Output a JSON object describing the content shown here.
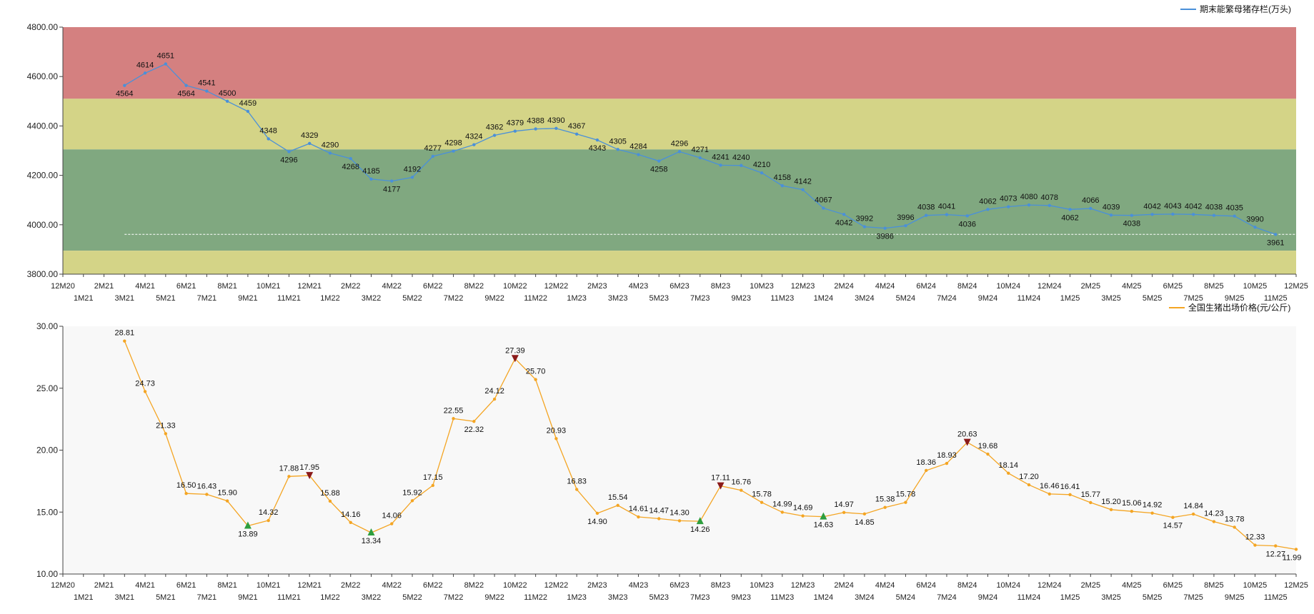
{
  "colors": {
    "top_line": "#4a90d9",
    "bottom_line": "#f4a523",
    "band_red": "#d48080",
    "band_yellow": "#d4d487",
    "band_green": "#80a880",
    "plot_bg_bottom": "#f8f8f8",
    "marker_up": "#2e9e3e",
    "marker_down": "#8b1a1a",
    "ref_line": "#ffffff"
  },
  "chart_data": [
    {
      "type": "line",
      "id": "top",
      "legend": "期末能繁母猪存栏(万头)",
      "legend_position": "top-right",
      "ylim": [
        3800,
        4800
      ],
      "yticks": [
        3800,
        4000,
        4200,
        4400,
        4600,
        4800
      ],
      "ytick_labels": [
        "3800.00",
        "4000.00",
        "4200.00",
        "4400.00",
        "4600.00",
        "4800.00"
      ],
      "bands": [
        {
          "from": 4510,
          "to": 4800,
          "color": "band_red"
        },
        {
          "from": 4305,
          "to": 4510,
          "color": "band_yellow"
        },
        {
          "from": 3895,
          "to": 4305,
          "color": "band_green"
        },
        {
          "from": 3800,
          "to": 3895,
          "color": "band_yellow"
        }
      ],
      "reference_line": {
        "value": 3961,
        "start_index": 3
      },
      "x_start_index": 3,
      "values": [
        4564,
        4614,
        4651,
        4564,
        4541,
        4500,
        4459,
        4348,
        4296,
        4329,
        4290,
        4268,
        4185,
        4177,
        4192,
        4277,
        4298,
        4324,
        4362,
        4379,
        4388,
        4390,
        4367,
        4343,
        4305,
        4284,
        4258,
        4296,
        4271,
        4241,
        4240,
        4210,
        4158,
        4142,
        4067,
        4042,
        3992,
        3986,
        3996,
        4038,
        4041,
        4036,
        4062,
        4073,
        4080,
        4078,
        4062,
        4066,
        4039,
        4038,
        4042,
        4043,
        4042,
        4038,
        4035,
        3990,
        3961
      ],
      "labels": [
        "4564",
        "4614",
        "4651",
        "4564",
        "4541",
        "4500",
        "4459",
        "4348",
        "4296",
        "4329",
        "4290",
        "4268",
        "4185",
        "4177",
        "4192",
        "4277",
        "4298",
        "4324",
        "4362",
        "4379",
        "4388",
        "4390",
        "4367",
        "4343",
        "4305",
        "4284",
        "4258",
        "4296",
        "4271",
        "4241",
        "4240",
        "4210",
        "4158",
        "4142",
        "4067",
        "4042",
        "3992",
        "3986",
        "3996",
        "4038",
        "4041",
        "4036",
        "4062",
        "4073",
        "4080",
        "4078",
        "4062",
        "4066",
        "4039",
        "4038",
        "4042",
        "4043",
        "4042",
        "4038",
        "4035",
        "3990",
        "3961"
      ],
      "label_pos": [
        "b",
        "t",
        "t",
        "b",
        "t",
        "t",
        "t",
        "t",
        "b",
        "t",
        "t",
        "b",
        "t",
        "b",
        "t",
        "t",
        "t",
        "t",
        "t",
        "t",
        "t",
        "t",
        "t",
        "b",
        "t",
        "t",
        "b",
        "t",
        "t",
        "t",
        "t",
        "t",
        "t",
        "t",
        "t",
        "b",
        "t",
        "b",
        "t",
        "t",
        "t",
        "b",
        "t",
        "t",
        "t",
        "t",
        "b",
        "t",
        "t",
        "b",
        "t",
        "t",
        "t",
        "t",
        "t",
        "t",
        "b"
      ]
    },
    {
      "type": "line",
      "id": "bottom",
      "legend": "全国生猪出场价格(元/公斤)",
      "legend_position": "top-right",
      "ylim": [
        10,
        30
      ],
      "yticks": [
        10,
        15,
        20,
        25,
        30
      ],
      "ytick_labels": [
        "10.00",
        "15.00",
        "20.00",
        "25.00",
        "30.00"
      ],
      "x_start_index": 3,
      "values": [
        28.81,
        24.73,
        21.33,
        16.5,
        16.43,
        15.9,
        13.89,
        14.32,
        17.88,
        17.95,
        15.88,
        14.16,
        13.34,
        14.06,
        15.92,
        17.15,
        22.55,
        22.32,
        24.12,
        27.39,
        25.7,
        20.93,
        16.83,
        14.9,
        15.54,
        14.61,
        14.47,
        14.3,
        14.26,
        17.11,
        16.76,
        15.78,
        14.99,
        14.69,
        14.63,
        14.97,
        14.85,
        15.38,
        15.78,
        18.36,
        18.93,
        20.63,
        19.68,
        18.14,
        17.2,
        16.46,
        16.41,
        15.77,
        15.2,
        15.06,
        14.92,
        14.57,
        14.84,
        14.23,
        13.78,
        12.33,
        12.27,
        11.99
      ],
      "labels": [
        "28.81",
        "24.73",
        "21.33",
        "16.50",
        "16.43",
        "15.90",
        "13.89",
        "14.32",
        "17.88",
        "17.95",
        "15.88",
        "14.16",
        "13.34",
        "14.06",
        "15.92",
        "17.15",
        "22.55",
        "22.32",
        "24.12",
        "27.39",
        "25.70",
        "20.93",
        "16.83",
        "14.90",
        "15.54",
        "14.61",
        "14.47",
        "14.30",
        "14.26",
        "17.11",
        "16.76",
        "15.78",
        "14.99",
        "14.69",
        "14.63",
        "14.97",
        "14.85",
        "15.38",
        "15.78",
        "18.36",
        "18.93",
        "20.63",
        "19.68",
        "18.14",
        "17.20",
        "16.46",
        "16.41",
        "15.77",
        "15.20",
        "15.06",
        "14.92",
        "14.57",
        "14.84",
        "14.23",
        "13.78",
        "12.33",
        "12.27",
        "11.99"
      ],
      "label_pos": [
        "t",
        "t",
        "t",
        "t",
        "t",
        "t",
        "b",
        "t",
        "t",
        "t",
        "t",
        "t",
        "b",
        "t",
        "t",
        "t",
        "t",
        "b",
        "t",
        "t",
        "t",
        "t",
        "t",
        "b",
        "t",
        "t",
        "t",
        "t",
        "b",
        "t",
        "t",
        "t",
        "t",
        "t",
        "b",
        "t",
        "b",
        "t",
        "t",
        "t",
        "t",
        "t",
        "t",
        "t",
        "t",
        "t",
        "t",
        "t",
        "t",
        "t",
        "t",
        "b",
        "t",
        "t",
        "t",
        "t",
        "b",
        "b"
      ],
      "markers": [
        {
          "index": 6,
          "kind": "up"
        },
        {
          "index": 9,
          "kind": "down"
        },
        {
          "index": 12,
          "kind": "up"
        },
        {
          "index": 19,
          "kind": "down"
        },
        {
          "index": 28,
          "kind": "up"
        },
        {
          "index": 29,
          "kind": "down"
        },
        {
          "index": 34,
          "kind": "up"
        },
        {
          "index": 41,
          "kind": "down"
        }
      ]
    }
  ],
  "x_categories": [
    "12M20",
    "1M21",
    "2M21",
    "3M21",
    "4M21",
    "5M21",
    "6M21",
    "7M21",
    "8M21",
    "9M21",
    "10M21",
    "11M21",
    "12M21",
    "1M22",
    "2M22",
    "3M22",
    "4M22",
    "5M22",
    "6M22",
    "7M22",
    "8M22",
    "9M22",
    "10M22",
    "11M22",
    "12M22",
    "1M23",
    "2M23",
    "3M23",
    "4M23",
    "5M23",
    "6M23",
    "7M23",
    "8M23",
    "9M23",
    "10M23",
    "11M23",
    "12M23",
    "1M24",
    "2M24",
    "3M24",
    "4M24",
    "5M24",
    "6M24",
    "7M24",
    "8M24",
    "9M24",
    "10M24",
    "11M24",
    "12M24",
    "1M25",
    "2M25",
    "3M25",
    "4M25",
    "5M25",
    "6M25",
    "7M25",
    "8M25",
    "9M25",
    "10M25",
    "11M25",
    "12M25"
  ]
}
